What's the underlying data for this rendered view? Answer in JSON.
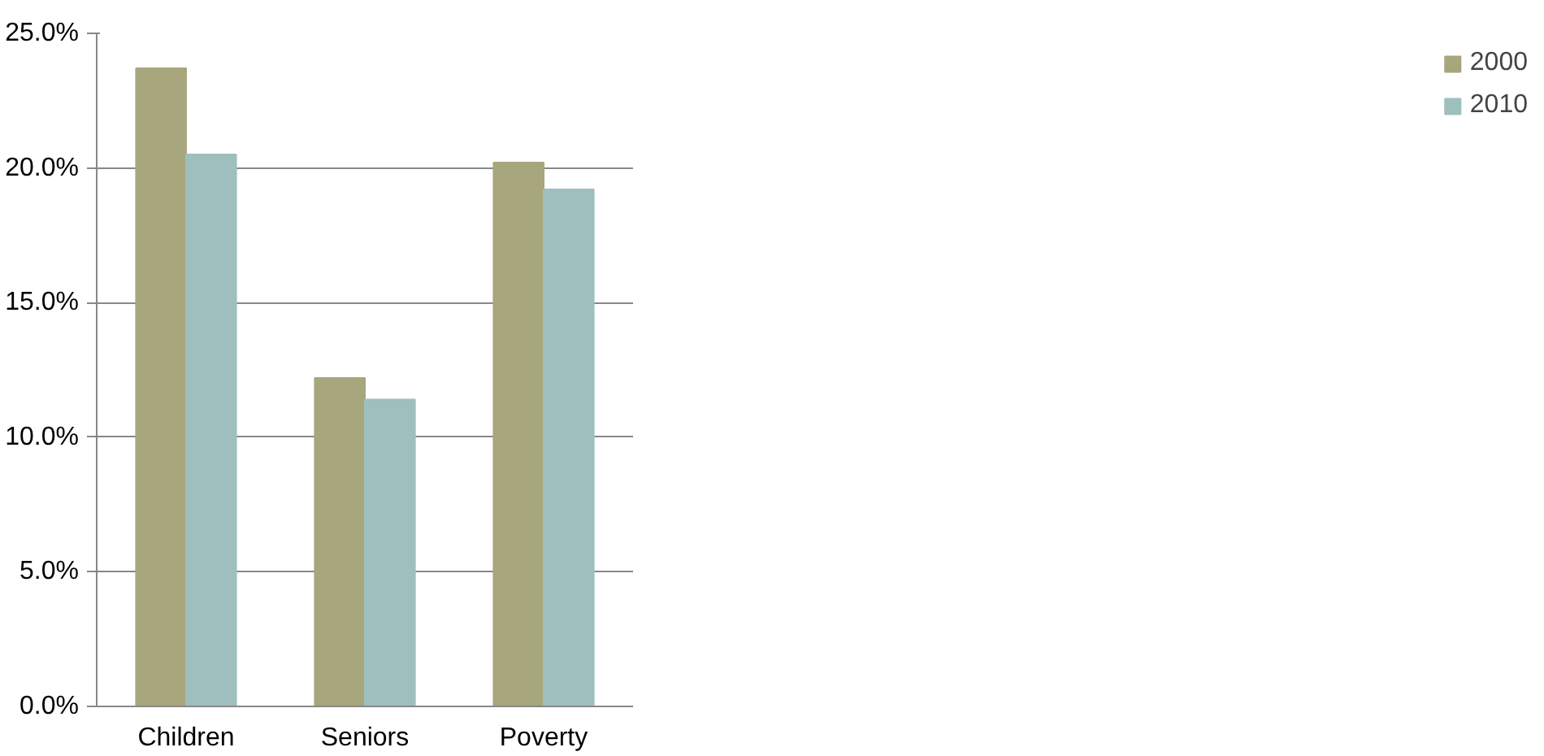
{
  "chart_data": {
    "type": "bar",
    "categories": [
      "Children",
      "Seniors",
      "Poverty"
    ],
    "series": [
      {
        "name": "2000",
        "color": "#a8a67c",
        "values": [
          23.7,
          12.2,
          20.2
        ]
      },
      {
        "name": "2010",
        "color": "#9fbfbf",
        "values": [
          20.5,
          11.4,
          19.2
        ]
      }
    ],
    "ylim": [
      0,
      25
    ],
    "yticks": [
      {
        "value": 0,
        "label": "0.0%"
      },
      {
        "value": 5,
        "label": "5.0%"
      },
      {
        "value": 10,
        "label": "10.0%"
      },
      {
        "value": 15,
        "label": "15.0%"
      },
      {
        "value": 20,
        "label": "20.0%"
      },
      {
        "value": 25,
        "label": "25.0%"
      }
    ],
    "grid": "y",
    "legend": "right"
  }
}
